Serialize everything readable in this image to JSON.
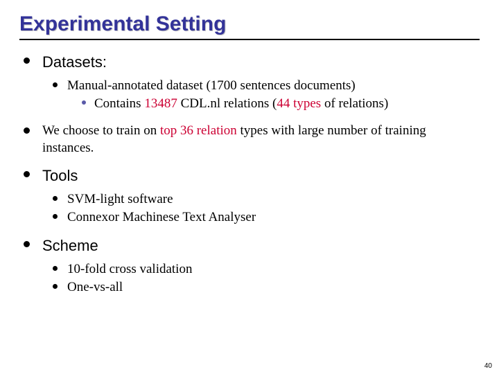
{
  "title": "Experimental Setting",
  "accent_color": "#cc0033",
  "title_color": "#333399",
  "slide_number": "40",
  "sections": {
    "datasets": {
      "heading": "Datasets:",
      "item1": "Manual-annotated dataset (1700 sentences documents)",
      "sub_pre": "Contains ",
      "sub_num": "13487",
      "sub_mid": " CDL.nl relations (",
      "sub_types": "44 types",
      "sub_post": " of relations)"
    },
    "train_choice": {
      "pre": "We choose to train on ",
      "accent": "top 36 relation",
      "post": " types with large number of training instances."
    },
    "tools": {
      "heading": "Tools",
      "item1": "SVM-light software",
      "item2": "Connexor Machinese Text Analyser"
    },
    "scheme": {
      "heading": "Scheme",
      "item1": "10-fold cross validation",
      "item2": "One-vs-all"
    }
  }
}
